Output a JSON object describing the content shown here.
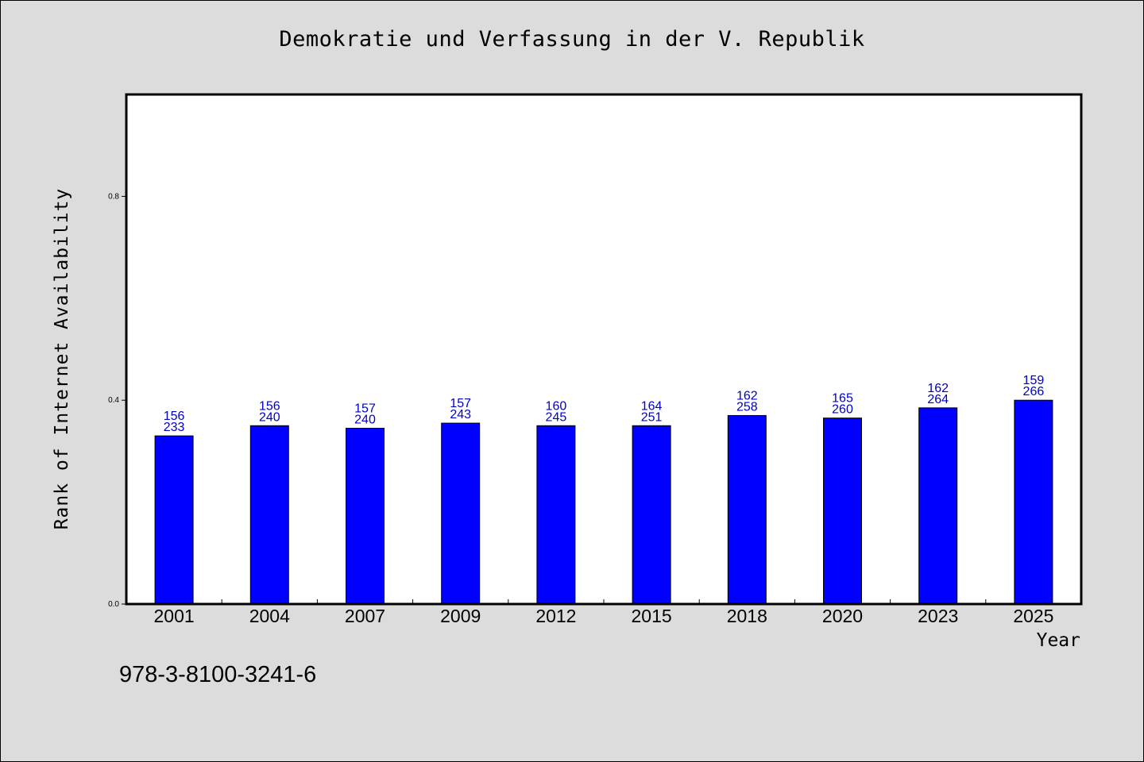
{
  "chart_data": {
    "type": "bar",
    "title": "Demokratie und Verfassung in der V. Republik",
    "xlabel": "Year",
    "ylabel": "Rank of Internet Availability",
    "categories": [
      "2001",
      "2004",
      "2007",
      "2009",
      "2012",
      "2015",
      "2018",
      "2020",
      "2023",
      "2025"
    ],
    "values": [
      0.33,
      0.35,
      0.345,
      0.355,
      0.35,
      0.35,
      0.37,
      0.365,
      0.385,
      0.4
    ],
    "labels_upper": [
      "156",
      "156",
      "157",
      "157",
      "160",
      "164",
      "162",
      "165",
      "162",
      "159"
    ],
    "labels_lower": [
      "233",
      "240",
      "240",
      "243",
      "245",
      "251",
      "258",
      "260",
      "264",
      "266"
    ],
    "ylim": [
      0.0,
      1.0
    ],
    "yticks": [
      "0.0",
      "0.4",
      "0.8"
    ],
    "ytick_values": [
      0.0,
      0.4,
      0.8
    ],
    "grid": false,
    "bar_color": "#0000ff",
    "label_color": "#0000cc"
  },
  "footnote": "978-3-8100-3241-6"
}
